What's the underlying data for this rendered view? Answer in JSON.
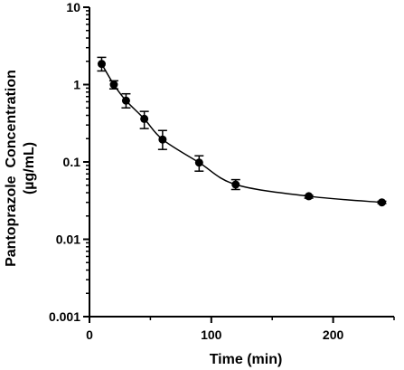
{
  "chart_data": {
    "type": "scatter",
    "title": "",
    "xlabel": "Time (min)",
    "ylabel_lines": [
      "Pantoprazole  Concentration",
      "(µg/mL)"
    ],
    "xlim": [
      0,
      250
    ],
    "ylim": [
      0.001,
      10
    ],
    "yscale": "log",
    "grid": false,
    "x_ticks": [
      0,
      100,
      200
    ],
    "x_tick_labels": [
      "0",
      "100",
      "200"
    ],
    "y_ticks": [
      0.001,
      0.01,
      0.1,
      1,
      10
    ],
    "y_tick_labels": [
      "0.001",
      "0.01",
      "0.1",
      "1",
      "10"
    ],
    "series": [
      {
        "x": [
          10,
          20,
          30,
          45,
          60,
          90,
          120,
          180,
          240
        ],
        "y": [
          1.85,
          1.0,
          0.62,
          0.36,
          0.195,
          0.098,
          0.051,
          0.036,
          0.03
        ],
        "y_low": [
          1.5,
          0.88,
          0.5,
          0.27,
          0.145,
          0.076,
          0.044,
          0.034,
          0.029
        ],
        "y_high": [
          2.25,
          1.12,
          0.76,
          0.45,
          0.255,
          0.12,
          0.059,
          0.037,
          0.031
        ],
        "marker": "circle",
        "line": "smooth",
        "color": "#000000"
      }
    ]
  }
}
